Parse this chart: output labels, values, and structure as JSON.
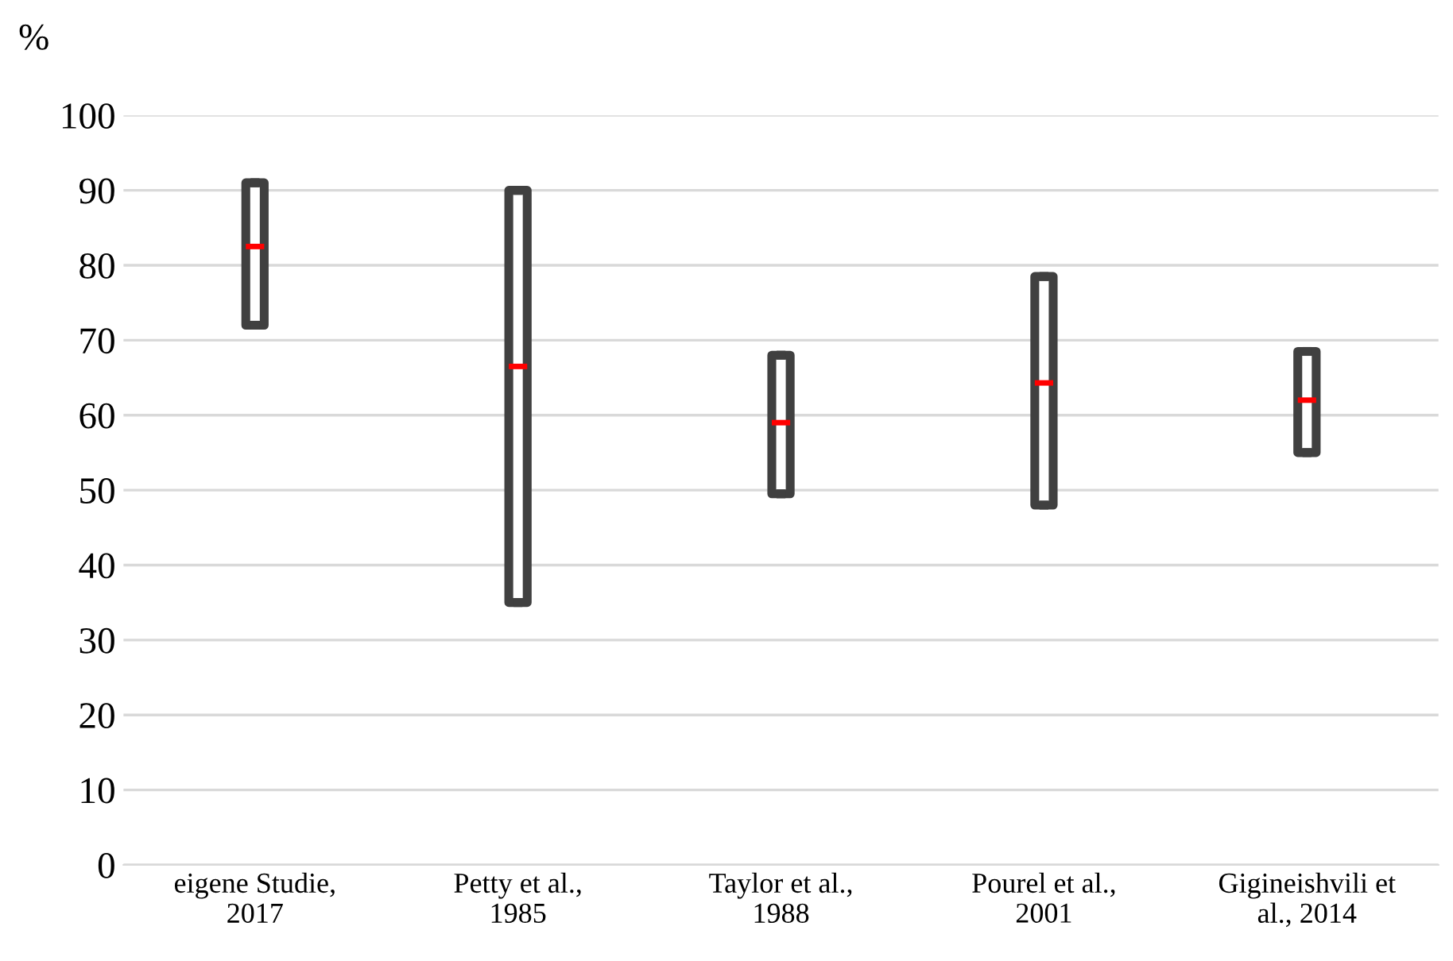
{
  "chart_data": {
    "type": "box",
    "ylabel": "%",
    "categories": [
      "eigene Studie,\n2017",
      "Petty et al.,\n1985",
      "Taylor et al.,\n1988",
      "Pourel et al.,\n2001",
      "Gigineishvili et\nal., 2014"
    ],
    "series": [
      {
        "color": "#404040",
        "boxes": [
          {
            "low": 72,
            "q1": 72,
            "median": 82.5,
            "q3": 91,
            "high": 91
          },
          {
            "low": 35,
            "q1": 35,
            "median": 66.5,
            "q3": 90,
            "high": 90
          },
          {
            "low": 49.5,
            "q1": 49.5,
            "median": 59,
            "q3": 68,
            "high": 68
          },
          {
            "low": 48,
            "q1": 48,
            "median": 64.3,
            "q3": 78.5,
            "high": 78.5
          },
          {
            "low": 55,
            "q1": 55,
            "median": 62,
            "q3": 68.5,
            "high": 68.5
          }
        ]
      }
    ],
    "ylim": [
      0,
      100
    ],
    "yticks": [
      0,
      10,
      20,
      30,
      40,
      50,
      60,
      70,
      80,
      90,
      100
    ],
    "grid": "y"
  }
}
